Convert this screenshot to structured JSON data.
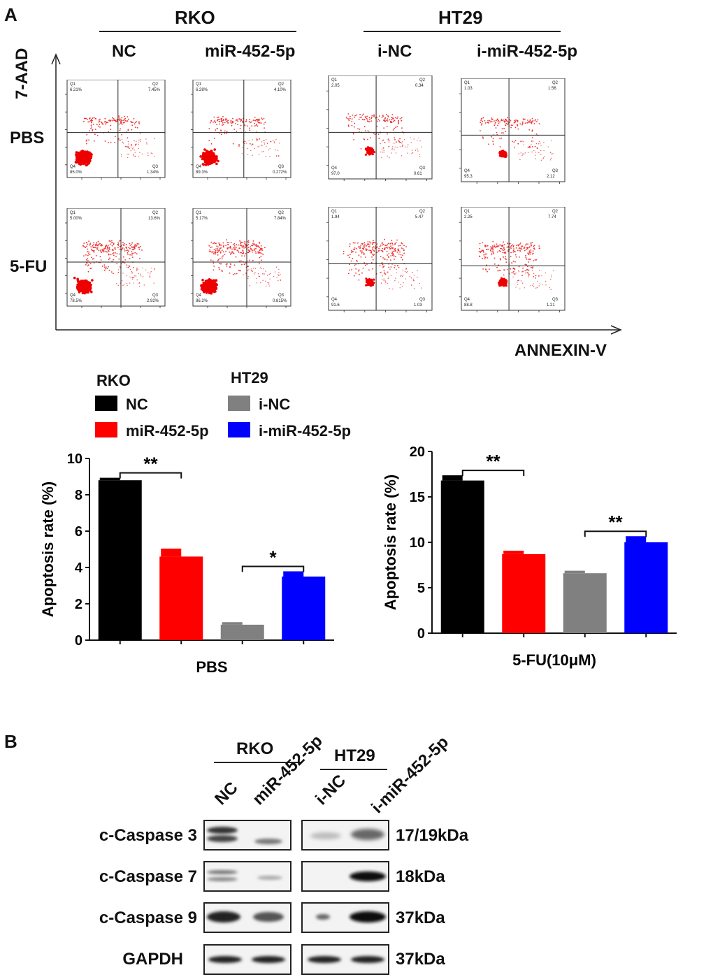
{
  "panelA": {
    "letter": "A",
    "rko_label": "RKO",
    "ht29_label": "HT29",
    "columns": [
      "NC",
      "miR-452-5p",
      "i-NC",
      "i-miR-452-5p"
    ],
    "rows": [
      "PBS",
      "5-FU"
    ],
    "y_axis": "7-AAD",
    "x_axis": "ANNEXIN-V",
    "flow_plots": [
      {
        "q1": "6.21%",
        "q2": "7.45%",
        "q3": "1.34%",
        "q4": "85.0%"
      },
      {
        "q1": "6.28%",
        "q2": "4.10%",
        "q3": "0.272%",
        "q4": "89.3%"
      },
      {
        "q1": "2.05",
        "q2": "0.34",
        "q3": "0.61",
        "q4": "97.0"
      },
      {
        "q1": "1.03",
        "q2": "1.56",
        "q3": "2.12",
        "q4": "95.3"
      },
      {
        "q1": "5.00%",
        "q2": "13.6%",
        "q3": "2.92%",
        "q4": "78.5%"
      },
      {
        "q1": "5.17%",
        "q2": "7.84%",
        "q3": "0.815%",
        "q4": "86.2%"
      },
      {
        "q1": "1.94",
        "q2": "5.47",
        "q3": "1.03",
        "q4": "91.6"
      },
      {
        "q1": "2.25",
        "q2": "7.74",
        "q3": "1.21",
        "q4": "88.8"
      }
    ],
    "quad_names": [
      "Q1",
      "Q2",
      "Q3",
      "Q4"
    ]
  },
  "legend": {
    "rko_title": "RKO",
    "ht29_title": "HT29",
    "items": [
      {
        "label": "NC",
        "color": "#000000"
      },
      {
        "label": "miR-452-5p",
        "color": "#ff0000"
      },
      {
        "label": "i-NC",
        "color": "#808080"
      },
      {
        "label": "i-miR-452-5p",
        "color": "#0000ff"
      }
    ]
  },
  "chart_data": [
    {
      "type": "bar",
      "title": "",
      "xlabel": "PBS",
      "ylabel": "Apoptosis rate (%)",
      "categories": [
        "NC",
        "miR-452-5p",
        "i-NC",
        "i-miR-452-5p"
      ],
      "values": [
        8.8,
        4.6,
        0.85,
        3.5
      ],
      "errors": [
        0.1,
        0.4,
        0.1,
        0.25
      ],
      "colors": [
        "#000000",
        "#ff0000",
        "#808080",
        "#0000ff"
      ],
      "ylim": [
        0,
        10
      ],
      "yticks": [
        "0",
        "2",
        "4",
        "6",
        "8",
        "10"
      ],
      "significance": [
        {
          "from": 0,
          "to": 1,
          "label": "**"
        },
        {
          "from": 2,
          "to": 3,
          "label": "*"
        }
      ]
    },
    {
      "type": "bar",
      "title": "",
      "xlabel": "5-FU(10μM)",
      "ylabel": "Apoptosis rate (%)",
      "categories": [
        "NC",
        "miR-452-5p",
        "i-NC",
        "i-miR-452-5p"
      ],
      "values": [
        16.8,
        8.7,
        6.6,
        10.0
      ],
      "errors": [
        0.5,
        0.3,
        0.2,
        0.6
      ],
      "colors": [
        "#000000",
        "#ff0000",
        "#808080",
        "#0000ff"
      ],
      "ylim": [
        0,
        20
      ],
      "yticks": [
        "0",
        "5",
        "10",
        "15",
        "20"
      ],
      "significance": [
        {
          "from": 0,
          "to": 1,
          "label": "**"
        },
        {
          "from": 2,
          "to": 3,
          "label": "**"
        }
      ]
    }
  ],
  "panelB": {
    "letter": "B",
    "rko_label": "RKO",
    "ht29_label": "HT29",
    "lanes": [
      "NC",
      "miR-452-5p",
      "i-NC",
      "i-miR-452-5p"
    ],
    "proteins": [
      {
        "name": "c-Caspase 3",
        "kda": "17/19kDa"
      },
      {
        "name": "c-Caspase 7",
        "kda": "18kDa"
      },
      {
        "name": "c-Caspase 9",
        "kda": "37kDa"
      },
      {
        "name": "GAPDH",
        "kda": "37kDa"
      }
    ]
  }
}
